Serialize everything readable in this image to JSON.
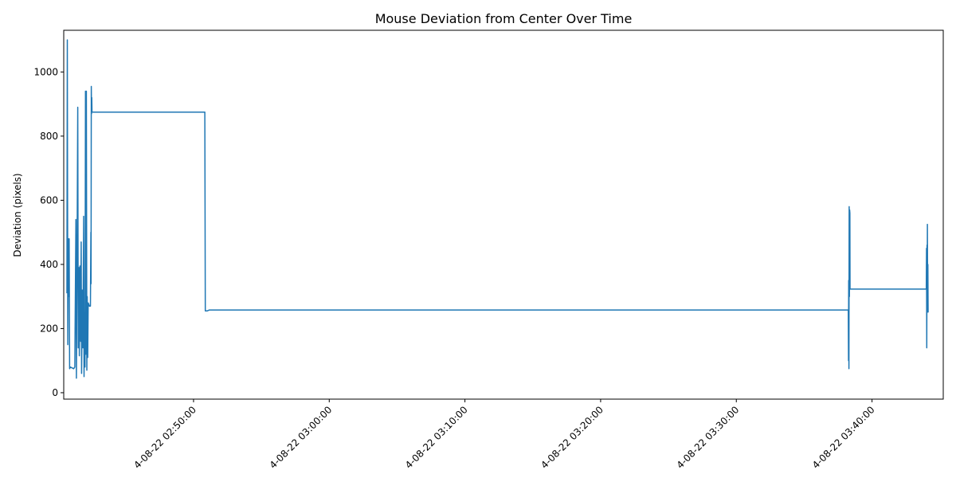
{
  "chart_data": {
    "type": "line",
    "title": "Mouse Deviation from Center Over Time",
    "xlabel": "",
    "ylabel": "Deviation (pixels)",
    "ylim": [
      -20,
      1130
    ],
    "xlim": [
      "2024-08-22 02:40:26",
      "2024-08-22 03:45:15"
    ],
    "yticks": [
      0,
      200,
      400,
      600,
      800,
      1000
    ],
    "xticks": [
      {
        "t": "2024-08-22 02:50:00",
        "label": "4-08-22 02:50:00"
      },
      {
        "t": "2024-08-22 03:00:00",
        "label": "4-08-22 03:00:00"
      },
      {
        "t": "2024-08-22 03:10:00",
        "label": "4-08-22 03:10:00"
      },
      {
        "t": "2024-08-22 03:20:00",
        "label": "4-08-22 03:20:00"
      },
      {
        "t": "2024-08-22 03:30:00",
        "label": "4-08-22 03:30:00"
      },
      {
        "t": "2024-08-22 03:40:00",
        "label": "4-08-22 03:40:00"
      }
    ],
    "color": "#1f77b4",
    "grid": false,
    "series": [
      {
        "points": [
          [
            "2024-08-22 02:40:40",
            310
          ],
          [
            "2024-08-22 02:40:42",
            1100
          ],
          [
            "2024-08-22 02:40:44",
            150
          ],
          [
            "2024-08-22 02:40:46",
            480
          ],
          [
            "2024-08-22 02:40:48",
            300
          ],
          [
            "2024-08-22 02:40:50",
            480
          ],
          [
            "2024-08-22 02:40:52",
            75
          ],
          [
            "2024-08-22 02:40:55",
            80
          ],
          [
            "2024-08-22 02:41:10",
            75
          ],
          [
            "2024-08-22 02:41:15",
            80
          ],
          [
            "2024-08-22 02:41:20",
            540
          ],
          [
            "2024-08-22 02:41:22",
            45
          ],
          [
            "2024-08-22 02:41:25",
            400
          ],
          [
            "2024-08-22 02:41:28",
            890
          ],
          [
            "2024-08-22 02:41:30",
            140
          ],
          [
            "2024-08-22 02:41:33",
            390
          ],
          [
            "2024-08-22 02:41:35",
            115
          ],
          [
            "2024-08-22 02:41:38",
            395
          ],
          [
            "2024-08-22 02:41:41",
            160
          ],
          [
            "2024-08-22 02:41:43",
            470
          ],
          [
            "2024-08-22 02:41:45",
            60
          ],
          [
            "2024-08-22 02:41:48",
            320
          ],
          [
            "2024-08-22 02:41:51",
            140
          ],
          [
            "2024-08-22 02:41:54",
            550
          ],
          [
            "2024-08-22 02:41:56",
            50
          ],
          [
            "2024-08-22 02:41:58",
            250
          ],
          [
            "2024-08-22 02:42:00",
            80
          ],
          [
            "2024-08-22 02:42:02",
            940
          ],
          [
            "2024-08-22 02:42:04",
            120
          ],
          [
            "2024-08-22 02:42:06",
            940
          ],
          [
            "2024-08-22 02:42:08",
            70
          ],
          [
            "2024-08-22 02:42:10",
            300
          ],
          [
            "2024-08-22 02:42:12",
            110
          ],
          [
            "2024-08-22 02:42:14",
            280
          ],
          [
            "2024-08-22 02:42:17",
            275
          ],
          [
            "2024-08-22 02:42:19",
            270
          ],
          [
            "2024-08-22 02:42:24",
            270
          ],
          [
            "2024-08-22 02:42:26",
            500
          ],
          [
            "2024-08-22 02:42:27",
            340
          ],
          [
            "2024-08-22 02:42:28",
            955
          ],
          [
            "2024-08-22 02:42:29",
            870
          ],
          [
            "2024-08-22 02:42:30",
            920
          ],
          [
            "2024-08-22 02:42:31",
            875
          ],
          [
            "2024-08-22 02:50:50",
            875
          ],
          [
            "2024-08-22 02:50:52",
            255
          ],
          [
            "2024-08-22 02:51:00",
            255
          ],
          [
            "2024-08-22 02:51:10",
            258
          ],
          [
            "2024-08-22 03:38:15",
            258
          ],
          [
            "2024-08-22 03:38:16",
            100
          ],
          [
            "2024-08-22 03:38:17",
            350
          ],
          [
            "2024-08-22 03:38:18",
            75
          ],
          [
            "2024-08-22 03:38:19",
            580
          ],
          [
            "2024-08-22 03:38:20",
            300
          ],
          [
            "2024-08-22 03:38:21",
            570
          ],
          [
            "2024-08-22 03:38:22",
            560
          ],
          [
            "2024-08-22 03:38:23",
            323
          ],
          [
            "2024-08-22 03:44:00",
            323
          ],
          [
            "2024-08-22 03:44:01",
            450
          ],
          [
            "2024-08-22 03:44:02",
            140
          ],
          [
            "2024-08-22 03:44:03",
            460
          ],
          [
            "2024-08-22 03:44:04",
            250
          ],
          [
            "2024-08-22 03:44:05",
            525
          ],
          [
            "2024-08-22 03:44:06",
            260
          ],
          [
            "2024-08-22 03:44:07",
            400
          ],
          [
            "2024-08-22 03:44:08",
            250
          ]
        ]
      }
    ]
  }
}
